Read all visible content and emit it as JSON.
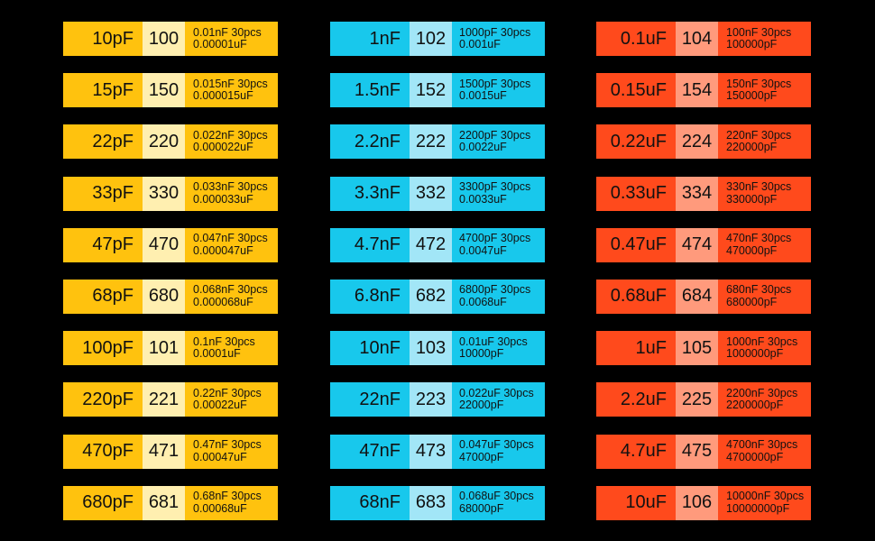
{
  "columns": [
    {
      "colors": {
        "value_bg": "#ffc20e",
        "code_bg": "#ffefb0",
        "desc_bg": "#ffc20e"
      },
      "rows": [
        {
          "value": "10pF",
          "code": "100",
          "line1": "0.01nF 30pcs",
          "line2": "0.00001uF"
        },
        {
          "value": "15pF",
          "code": "150",
          "line1": "0.015nF 30pcs",
          "line2": "0.000015uF"
        },
        {
          "value": "22pF",
          "code": "220",
          "line1": "0.022nF 30pcs",
          "line2": "0.000022uF"
        },
        {
          "value": "33pF",
          "code": "330",
          "line1": "0.033nF 30pcs",
          "line2": "0.000033uF"
        },
        {
          "value": "47pF",
          "code": "470",
          "line1": "0.047nF 30pcs",
          "line2": "0.000047uF"
        },
        {
          "value": "68pF",
          "code": "680",
          "line1": "0.068nF 30pcs",
          "line2": "0.000068uF"
        },
        {
          "value": "100pF",
          "code": "101",
          "line1": "0.1nF 30pcs",
          "line2": "0.0001uF"
        },
        {
          "value": "220pF",
          "code": "221",
          "line1": "0.22nF 30pcs",
          "line2": "0.00022uF"
        },
        {
          "value": "470pF",
          "code": "471",
          "line1": "0.47nF 30pcs",
          "line2": "0.00047uF"
        },
        {
          "value": "680pF",
          "code": "681",
          "line1": "0.68nF 30pcs",
          "line2": "0.00068uF"
        }
      ]
    },
    {
      "colors": {
        "value_bg": "#18c8ec",
        "code_bg": "#a2e6f7",
        "desc_bg": "#18c8ec"
      },
      "rows": [
        {
          "value": "1nF",
          "code": "102",
          "line1": "1000pF 30pcs",
          "line2": "0.001uF"
        },
        {
          "value": "1.5nF",
          "code": "152",
          "line1": "1500pF 30pcs",
          "line2": "0.0015uF"
        },
        {
          "value": "2.2nF",
          "code": "222",
          "line1": "2200pF 30pcs",
          "line2": "0.0022uF"
        },
        {
          "value": "3.3nF",
          "code": "332",
          "line1": "3300pF 30pcs",
          "line2": "0.0033uF"
        },
        {
          "value": "4.7nF",
          "code": "472",
          "line1": "4700pF 30pcs",
          "line2": "0.0047uF"
        },
        {
          "value": "6.8nF",
          "code": "682",
          "line1": "6800pF 30pcs",
          "line2": "0.0068uF"
        },
        {
          "value": "10nF",
          "code": "103",
          "line1": "0.01uF 30pcs",
          "line2": "10000pF"
        },
        {
          "value": "22nF",
          "code": "223",
          "line1": "0.022uF 30pcs",
          "line2": "22000pF"
        },
        {
          "value": "47nF",
          "code": "473",
          "line1": "0.047uF 30pcs",
          "line2": "47000pF"
        },
        {
          "value": "68nF",
          "code": "683",
          "line1": "0.068uF 30pcs",
          "line2": "68000pF"
        }
      ]
    },
    {
      "colors": {
        "value_bg": "#ff4a1c",
        "code_bg": "#ff9a7c",
        "desc_bg": "#ff4a1c"
      },
      "rows": [
        {
          "value": "0.1uF",
          "code": "104",
          "line1": "100nF 30pcs",
          "line2": "100000pF"
        },
        {
          "value": "0.15uF",
          "code": "154",
          "line1": "150nF 30pcs",
          "line2": "150000pF"
        },
        {
          "value": "0.22uF",
          "code": "224",
          "line1": "220nF 30pcs",
          "line2": "220000pF"
        },
        {
          "value": "0.33uF",
          "code": "334",
          "line1": "330nF 30pcs",
          "line2": "330000pF"
        },
        {
          "value": "0.47uF",
          "code": "474",
          "line1": "470nF 30pcs",
          "line2": "470000pF"
        },
        {
          "value": "0.68uF",
          "code": "684",
          "line1": "680nF 30pcs",
          "line2": "680000pF"
        },
        {
          "value": "1uF",
          "code": "105",
          "line1": "1000nF 30pcs",
          "line2": "1000000pF"
        },
        {
          "value": "2.2uF",
          "code": "225",
          "line1": "2200nF 30pcs",
          "line2": "2200000pF"
        },
        {
          "value": "4.7uF",
          "code": "475",
          "line1": "4700nF 30pcs",
          "line2": "4700000pF"
        },
        {
          "value": "10uF",
          "code": "106",
          "line1": "10000nF 30pcs",
          "line2": "10000000pF"
        }
      ]
    }
  ]
}
